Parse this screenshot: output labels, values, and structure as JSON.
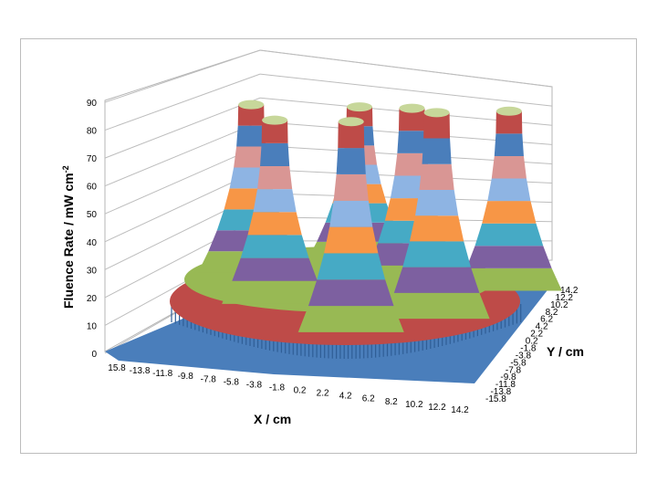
{
  "chart_data": {
    "type": "surface-3d",
    "zlabel": "Fluence Rate / mW cm",
    "zlabel_superscript": "-2",
    "xlabel": "X / cm",
    "ylabel": "Y / cm",
    "z_ticks": [
      "0",
      "10",
      "20",
      "30",
      "40",
      "50",
      "60",
      "70",
      "80",
      "90"
    ],
    "zlim": [
      0,
      90
    ],
    "x_ticks": [
      "15.8",
      "-13.8",
      "-11.8",
      "-9.8",
      "-7.8",
      "-5.8",
      "-3.8",
      "-1.8",
      "0.2",
      "2.2",
      "4.2",
      "6.2",
      "8.2",
      "10.2",
      "12.2",
      "14.2"
    ],
    "y_ticks": [
      "14.2",
      "12.2",
      "10.2",
      "8.2",
      "6.2",
      "4.2",
      "2.2",
      "0.2",
      "-1.8",
      "-3.8",
      "-5.8",
      "-7.8",
      "-9.8",
      "-11.8",
      "-13.8",
      "-15.8"
    ],
    "band_colors": [
      "#4a7ebb",
      "#be4b48",
      "#98b954",
      "#7d60a0",
      "#46aac5",
      "#f79646",
      "#8eb4e3",
      "#d99694"
    ],
    "peaks": [
      {
        "x": -9.8,
        "y": 6.2,
        "z": 88
      },
      {
        "x": -1.8,
        "y": 12.2,
        "z": 87
      },
      {
        "x": 4.2,
        "y": 6.2,
        "z": 87
      },
      {
        "x": -5.8,
        "y": -1.8,
        "z": 83
      },
      {
        "x": 8.2,
        "y": -1.8,
        "z": 86
      },
      {
        "x": 2.2,
        "y": -7.8,
        "z": 83
      },
      {
        "x": 12.2,
        "y": 8.2,
        "z": 86
      }
    ]
  }
}
